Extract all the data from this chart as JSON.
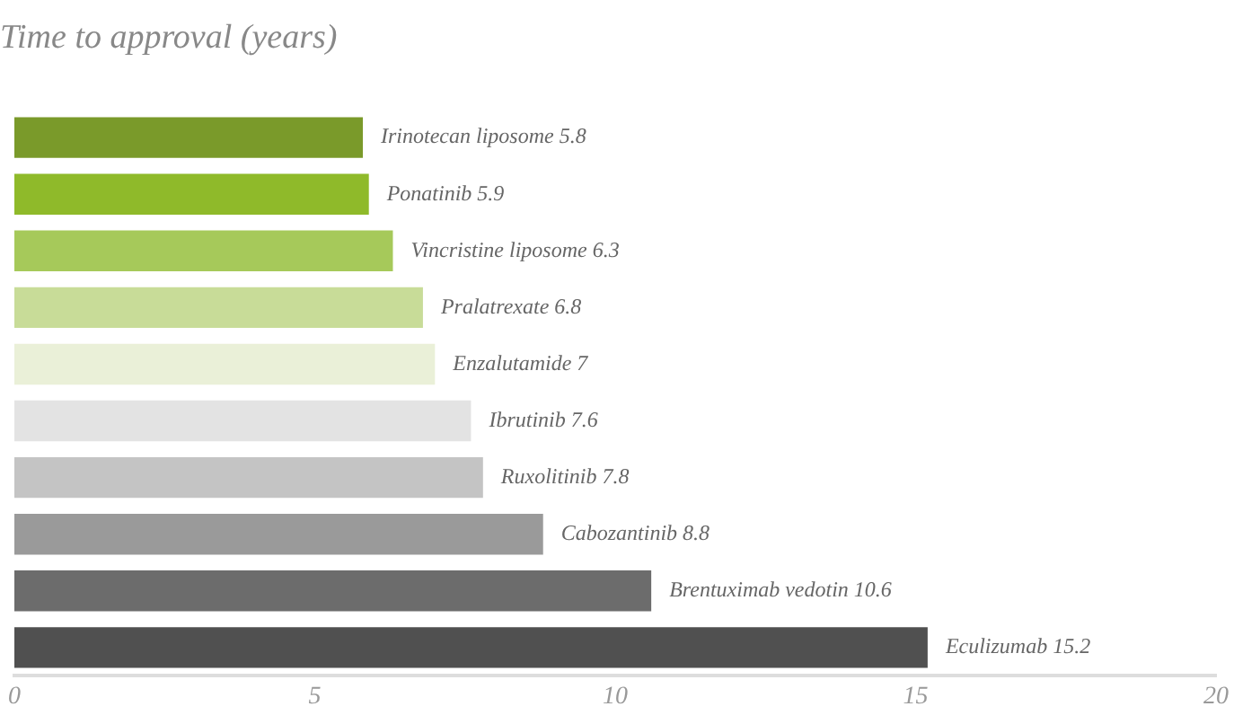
{
  "chart_data": {
    "type": "bar",
    "orientation": "horizontal",
    "title": "Time to approval (years)",
    "categories": [
      null,
      null,
      null,
      null,
      null,
      null,
      null,
      null,
      null,
      null
    ],
    "values": [
      5.8,
      5.9,
      6.3,
      6.8,
      7,
      7.6,
      7.8,
      8.8,
      10.6,
      15.2
    ],
    "value_labels": [
      "Irinotecan liposome 5.8",
      "Ponatinib 5.9",
      "Vincristine liposome 6.3",
      "Pralatrexate 6.8",
      "Enzalutamide 7",
      "Ibrutinib 7.6",
      "Ruxolitinib 7.8",
      "Cabozantinib 8.8",
      "Brentuximab vedotin 10.6",
      "Eculizumab 15.2"
    ],
    "colors": [
      "#7a9a2a",
      "#8fba2a",
      "#a6c95a",
      "#c8dc98",
      "#eaf0d8",
      "#e3e3e3",
      "#c4c4c4",
      "#9a9a9a",
      "#6c6c6c",
      "#505050"
    ],
    "xlim": [
      0,
      20
    ],
    "xticks": [
      0,
      5,
      10,
      15,
      20
    ],
    "grid": false,
    "legend": false
  }
}
